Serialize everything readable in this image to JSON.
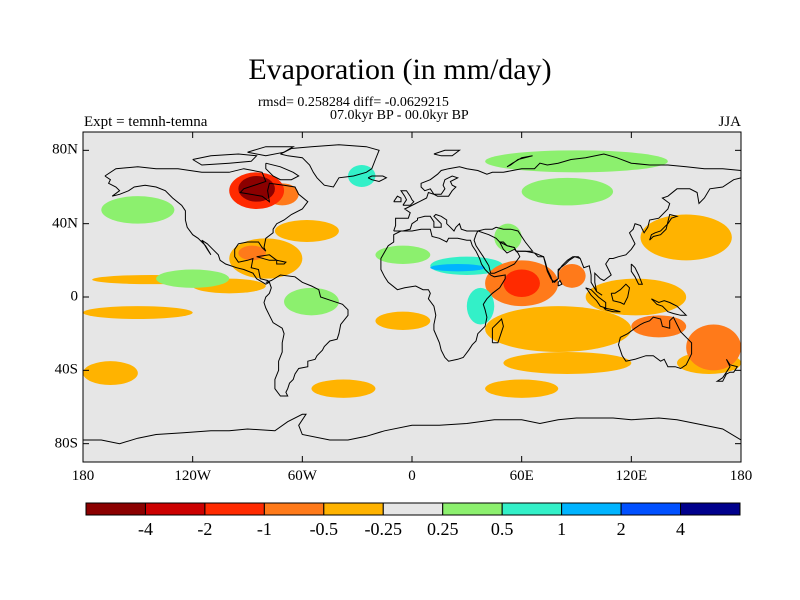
{
  "title": "Evaporation (in mm/day)",
  "stats_line": "rmsd= 0.258284 diff= -0.0629215",
  "period_line": "07.0kyr BP - 00.0kyr BP",
  "experiment_label": "Expt = temnh-temna",
  "season_label": "JJA",
  "x_axis": {
    "ticks": [
      "180",
      "120W",
      "60W",
      "0",
      "60E",
      "120E",
      "180"
    ],
    "values": [
      -180,
      -120,
      -60,
      0,
      60,
      120,
      180
    ]
  },
  "y_axis": {
    "ticks": [
      "80N",
      "40N",
      "0",
      "40S",
      "80S"
    ],
    "values": [
      80,
      40,
      0,
      -40,
      -80
    ]
  },
  "colorbar": {
    "colors": [
      "#8b0000",
      "#cc0000",
      "#ff2a00",
      "#ff7a1a",
      "#ffb300",
      "#e6e6e6",
      "#8cf06e",
      "#33f0c8",
      "#00b4ff",
      "#0050ff",
      "#00008c"
    ],
    "labels": [
      "-4",
      "-2",
      "-1",
      "-0.5",
      "-0.25",
      "0.25",
      "0.5",
      "1",
      "2",
      "4"
    ]
  },
  "chart_data": {
    "type": "heatmap",
    "title": "Evaporation (in mm/day)",
    "subtitle": "rmsd= 0.258284 diff= -0.0629215",
    "period": "07.0kyr BP - 00.0kyr BP",
    "experiment": "Expt = temnh-temna",
    "season": "JJA",
    "units": "mm/day",
    "lon_range": [
      -180,
      180
    ],
    "lat_range": [
      -90,
      90
    ],
    "levels": [
      -4,
      -2,
      -1,
      -0.5,
      -0.25,
      0.25,
      0.5,
      1,
      2,
      4
    ],
    "anomaly_regions": [
      {
        "name": "Hudson Bay",
        "lon": [
          -95,
          -75
        ],
        "lat": [
          52,
          66
        ],
        "bin": 0
      },
      {
        "name": "Hudson Bay rim",
        "lon": [
          -100,
          -70
        ],
        "lat": [
          48,
          68
        ],
        "bin": 2
      },
      {
        "name": "NE Canada",
        "lon": [
          -80,
          -62
        ],
        "lat": [
          50,
          62
        ],
        "bin": 3
      },
      {
        "name": "Caribbean / Gulf",
        "lon": [
          -100,
          -60
        ],
        "lat": [
          10,
          32
        ],
        "bin": 4
      },
      {
        "name": "NW Atlantic",
        "lon": [
          -75,
          -40
        ],
        "lat": [
          30,
          42
        ],
        "bin": 4
      },
      {
        "name": "Gulf of Mexico",
        "lon": [
          -95,
          -80
        ],
        "lat": [
          20,
          28
        ],
        "bin": 3
      },
      {
        "name": "Tropical N Pacific",
        "lon": [
          -175,
          -110
        ],
        "lat": [
          7,
          12
        ],
        "bin": 4
      },
      {
        "name": "Tropical N Pacific E",
        "lon": [
          -120,
          -80
        ],
        "lat": [
          2,
          10
        ],
        "bin": 4
      },
      {
        "name": "S Tropical Pacific",
        "lon": [
          -180,
          -120
        ],
        "lat": [
          -12,
          -5
        ],
        "bin": 4
      },
      {
        "name": "S Atlantic",
        "lon": [
          -20,
          10
        ],
        "lat": [
          -18,
          -8
        ],
        "bin": 4
      },
      {
        "name": "W Africa",
        "lon": [
          -20,
          10
        ],
        "lat": [
          18,
          28
        ],
        "bin": 6
      },
      {
        "name": "Sahara / Arabia",
        "lon": [
          10,
          50
        ],
        "lat": [
          12,
          22
        ],
        "bin": 7
      },
      {
        "name": "Sahel core",
        "lon": [
          10,
          40
        ],
        "lat": [
          14,
          18
        ],
        "bin": 8
      },
      {
        "name": "Central Asia",
        "lon": [
          60,
          110
        ],
        "lat": [
          50,
          65
        ],
        "bin": 6
      },
      {
        "name": "Middle East",
        "lon": [
          45,
          60
        ],
        "lat": [
          25,
          40
        ],
        "bin": 6
      },
      {
        "name": "Arabian Sea / W Indian Ocean",
        "lon": [
          40,
          80
        ],
        "lat": [
          -5,
          20
        ],
        "bin": 3
      },
      {
        "name": "Arabian Sea core",
        "lon": [
          50,
          70
        ],
        "lat": [
          0,
          15
        ],
        "bin": 2
      },
      {
        "name": "Bay of Bengal",
        "lon": [
          80,
          95
        ],
        "lat": [
          5,
          18
        ],
        "bin": 3
      },
      {
        "name": "Indian Ocean S",
        "lon": [
          40,
          120
        ],
        "lat": [
          -30,
          -5
        ],
        "bin": 4
      },
      {
        "name": "Maritime Continent",
        "lon": [
          95,
          150
        ],
        "lat": [
          -10,
          10
        ],
        "bin": 4
      },
      {
        "name": "N Australia",
        "lon": [
          120,
          150
        ],
        "lat": [
          -22,
          -10
        ],
        "bin": 3
      },
      {
        "name": "Coral Sea",
        "lon": [
          150,
          180
        ],
        "lat": [
          -40,
          -15
        ],
        "bin": 3
      },
      {
        "name": "Tasman Sea",
        "lon": [
          145,
          180
        ],
        "lat": [
          -42,
          -30
        ],
        "bin": 4
      },
      {
        "name": "NW Pacific",
        "lon": [
          125,
          175
        ],
        "lat": [
          20,
          45
        ],
        "bin": 4
      },
      {
        "name": "S Indian Ocean band",
        "lon": [
          50,
          120
        ],
        "lat": [
          -42,
          -30
        ],
        "bin": 4
      },
      {
        "name": "S Pacific",
        "lon": [
          -180,
          -150
        ],
        "lat": [
          -48,
          -35
        ],
        "bin": 4
      },
      {
        "name": "S Atlantic midlat",
        "lon": [
          -55,
          -20
        ],
        "lat": [
          -55,
          -45
        ],
        "bin": 4
      },
      {
        "name": "S Ocean 60E",
        "lon": [
          40,
          80
        ],
        "lat": [
          -55,
          -45
        ],
        "bin": 4
      },
      {
        "name": "Greenland SE",
        "lon": [
          -35,
          -20
        ],
        "lat": [
          60,
          72
        ],
        "bin": 7
      },
      {
        "name": "Arctic Eurasia",
        "lon": [
          40,
          140
        ],
        "lat": [
          68,
          80
        ],
        "bin": 6
      },
      {
        "name": "N Pacific",
        "lon": [
          -170,
          -130
        ],
        "lat": [
          40,
          55
        ],
        "bin": 6
      },
      {
        "name": "Amazon",
        "lon": [
          -70,
          -40
        ],
        "lat": [
          -10,
          5
        ],
        "bin": 6
      },
      {
        "name": "E Africa",
        "lon": [
          30,
          45
        ],
        "lat": [
          -15,
          5
        ],
        "bin": 7
      },
      {
        "name": "Tropical Pacific NE",
        "lon": [
          -140,
          -100
        ],
        "lat": [
          5,
          15
        ],
        "bin": 6
      }
    ]
  }
}
